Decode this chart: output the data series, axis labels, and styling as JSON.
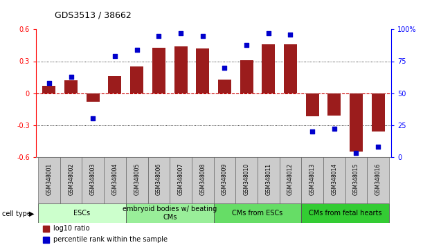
{
  "title": "GDS3513 / 38662",
  "samples": [
    "GSM348001",
    "GSM348002",
    "GSM348003",
    "GSM348004",
    "GSM348005",
    "GSM348006",
    "GSM348007",
    "GSM348008",
    "GSM348009",
    "GSM348010",
    "GSM348011",
    "GSM348012",
    "GSM348013",
    "GSM348014",
    "GSM348015",
    "GSM348016"
  ],
  "log10_ratio": [
    0.07,
    0.12,
    -0.08,
    0.16,
    0.25,
    0.43,
    0.44,
    0.42,
    0.13,
    0.31,
    0.46,
    0.46,
    -0.22,
    -0.21,
    -0.55,
    -0.36
  ],
  "percentile_rank": [
    58,
    63,
    30,
    79,
    84,
    95,
    97,
    95,
    70,
    88,
    97,
    96,
    20,
    22,
    3,
    8
  ],
  "ylim_left": [
    -0.6,
    0.6
  ],
  "ylim_right": [
    0,
    100
  ],
  "bar_color": "#9b1c1c",
  "dot_color": "#0000cc",
  "zero_line_color": "#cc0000",
  "grid_line_color": "#000000",
  "cell_type_groups": [
    {
      "label": "ESCs",
      "start": 0,
      "end": 3,
      "color": "#ccffcc"
    },
    {
      "label": "embryoid bodies w/ beating\nCMs",
      "start": 4,
      "end": 7,
      "color": "#99ee99"
    },
    {
      "label": "CMs from ESCs",
      "start": 8,
      "end": 11,
      "color": "#66dd66"
    },
    {
      "label": "CMs from fetal hearts",
      "start": 12,
      "end": 15,
      "color": "#33cc33"
    }
  ],
  "yticks_left": [
    -0.6,
    -0.3,
    0.0,
    0.3,
    0.6
  ],
  "ytick_labels_left": [
    "-0.6",
    "-0.3",
    "0",
    "0.3",
    "0.6"
  ],
  "yticks_right": [
    0,
    25,
    50,
    75,
    100
  ],
  "ytick_labels_right": [
    "0",
    "25",
    "50",
    "75",
    "100%"
  ],
  "bar_width": 0.6,
  "dot_size": 20,
  "title_fontsize": 9,
  "tick_fontsize": 7,
  "sample_fontsize": 5.5,
  "group_fontsize": 7,
  "legend_fontsize": 7
}
